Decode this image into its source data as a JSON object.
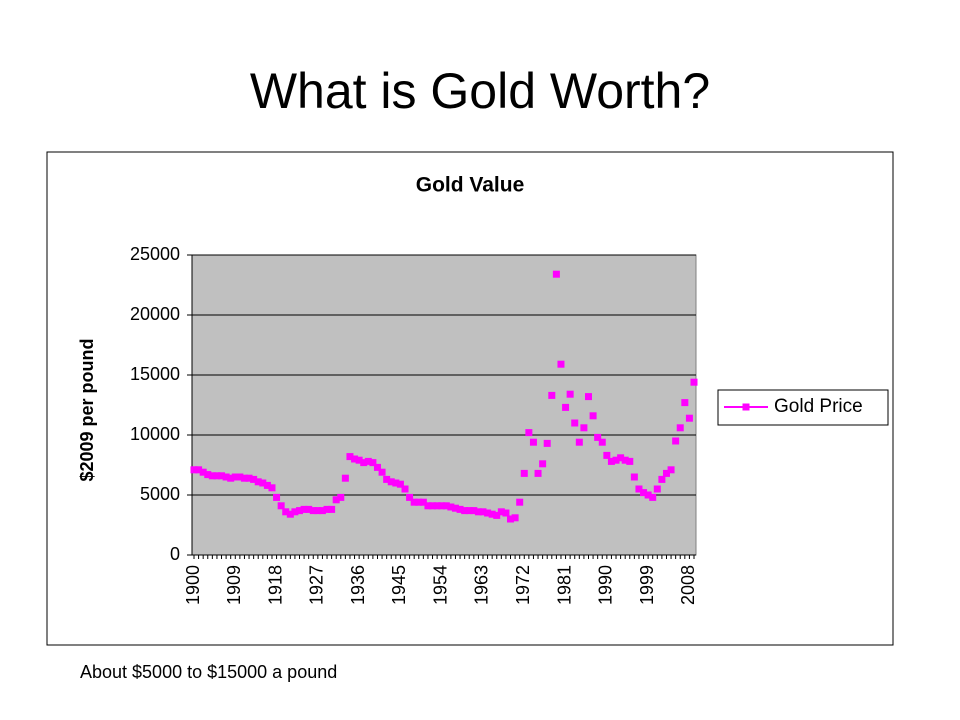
{
  "slide_title": "What is Gold Worth?",
  "caption": "About $5000 to $15000 a pound",
  "chart_data": {
    "type": "line",
    "title": "Gold Value",
    "y_label": "$2009 per pound",
    "categories": [
      "1900",
      null,
      null,
      null,
      null,
      null,
      null,
      null,
      null,
      "1909",
      null,
      null,
      null,
      null,
      null,
      null,
      null,
      null,
      "1918",
      null,
      null,
      null,
      null,
      null,
      null,
      null,
      null,
      "1927",
      null,
      null,
      null,
      null,
      null,
      null,
      null,
      null,
      "1936",
      null,
      null,
      null,
      null,
      null,
      null,
      null,
      null,
      "1945",
      null,
      null,
      null,
      null,
      null,
      null,
      null,
      null,
      "1954",
      null,
      null,
      null,
      null,
      null,
      null,
      null,
      null,
      "1963",
      null,
      null,
      null,
      null,
      null,
      null,
      null,
      null,
      "1972",
      null,
      null,
      null,
      null,
      null,
      null,
      null,
      null,
      "1981",
      null,
      null,
      null,
      null,
      null,
      null,
      null,
      null,
      "1990",
      null,
      null,
      null,
      null,
      null,
      null,
      null,
      null,
      "1999",
      null,
      null,
      null,
      null,
      null,
      null,
      null,
      null,
      "2008",
      null
    ],
    "series": [
      {
        "name": "Gold Price",
        "color": "#ff00ff",
        "values": [
          7100,
          7100,
          6900,
          6700,
          6600,
          6600,
          6600,
          6500,
          6400,
          6500,
          6500,
          6400,
          6400,
          6300,
          6100,
          6000,
          5800,
          5600,
          4800,
          4100,
          3600,
          3400,
          3600,
          3700,
          3800,
          3800,
          3700,
          3700,
          3700,
          3800,
          3800,
          4600,
          4800,
          6400,
          8200,
          8000,
          7900,
          7700,
          7800,
          7700,
          7300,
          6900,
          6300,
          6100,
          6000,
          5900,
          5500,
          4800,
          4400,
          4400,
          4400,
          4100,
          4100,
          4100,
          4100,
          4100,
          4000,
          3900,
          3800,
          3700,
          3700,
          3700,
          3600,
          3600,
          3500,
          3400,
          3300,
          3600,
          3500,
          3000,
          3100,
          4400,
          6800,
          10200,
          9400,
          6800,
          7600,
          9300,
          13300,
          23400,
          15900,
          12300,
          13400,
          11000,
          9400,
          10600,
          13200,
          11600,
          9800,
          9400,
          8300,
          7800,
          7900,
          8100,
          7900,
          7800,
          6500,
          5500,
          5200,
          5000,
          4800,
          5500,
          6300,
          6800,
          7100,
          9500,
          10600,
          12700,
          11400,
          14400
        ]
      }
    ],
    "ylim": [
      0,
      25000
    ],
    "yticks": [
      0,
      5000,
      10000,
      15000,
      20000,
      25000
    ],
    "grid": true,
    "legend": "right",
    "plot_background": "#c0c0c0"
  }
}
